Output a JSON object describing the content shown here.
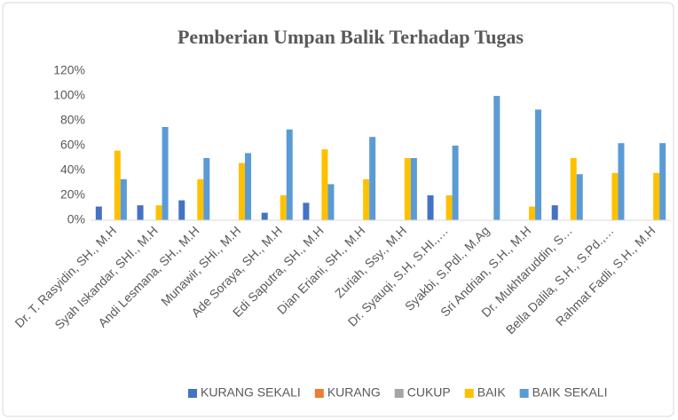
{
  "chart_data": {
    "type": "bar",
    "title": "Pemberian Umpan Balik Terhadap Tugas",
    "categories": [
      "Dr. T. Rasyidin, SH., M.H",
      "Syah Iskandar, SHI., M.H",
      "Andi Lesmana, SH., M.H",
      "Munawir, SHi., M.H",
      "Ade Soraya, SH., M.H",
      "Edi Saputra, SH., M.H",
      "Dian Eriani, SH., M.H",
      "Zuriah, Ssy., M.H",
      "Dr. Syauqi, S.H, S.HI.,…",
      "Syakbi, S.Pdl., M.Ag",
      "Sri Andrian, S.H., M.H",
      "Dr. Mukhtaruddin, S…",
      "Bella Dalila, S.H., S.Pd.,…",
      "Rahmat Fadli, S.H., M.H"
    ],
    "series": [
      {
        "name": "KURANG SEKALI",
        "color": "#4472c4",
        "values": [
          11,
          12,
          16,
          0,
          6,
          14,
          0,
          0,
          20,
          0,
          0,
          12,
          0,
          0
        ]
      },
      {
        "name": "KURANG",
        "color": "#ed7d31",
        "values": [
          0,
          0,
          0,
          0,
          0,
          0,
          0,
          0,
          0,
          0,
          0,
          0,
          0,
          0
        ]
      },
      {
        "name": "CUKUP",
        "color": "#a5a5a5",
        "values": [
          0,
          0,
          0,
          0,
          0,
          0,
          0,
          0,
          0,
          0,
          0,
          0,
          0,
          0
        ]
      },
      {
        "name": "BAIK",
        "color": "#ffc000",
        "values": [
          56,
          12,
          33,
          46,
          20,
          57,
          33,
          50,
          20,
          0,
          11,
          50,
          38,
          38
        ]
      },
      {
        "name": "BAIK SEKALI",
        "color": "#5b9bd5",
        "values": [
          33,
          75,
          50,
          54,
          73,
          29,
          67,
          50,
          60,
          100,
          89,
          37,
          62,
          62
        ]
      }
    ],
    "ylim": [
      0,
      120
    ],
    "yticks": [
      {
        "value": 0,
        "label": "0%"
      },
      {
        "value": 20,
        "label": "20%"
      },
      {
        "value": 40,
        "label": "40%"
      },
      {
        "value": 60,
        "label": "60%"
      },
      {
        "value": 80,
        "label": "80%"
      },
      {
        "value": 100,
        "label": "100%"
      },
      {
        "value": 120,
        "label": "120%"
      }
    ],
    "grid": false,
    "legend": "bottom"
  }
}
